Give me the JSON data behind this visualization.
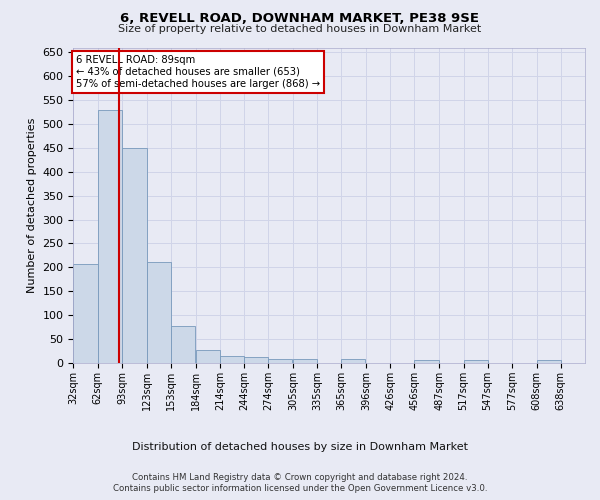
{
  "title": "6, REVELL ROAD, DOWNHAM MARKET, PE38 9SE",
  "subtitle": "Size of property relative to detached houses in Downham Market",
  "xlabel_bottom": "Distribution of detached houses by size in Downham Market",
  "ylabel": "Number of detached properties",
  "footer_line1": "Contains HM Land Registry data © Crown copyright and database right 2024.",
  "footer_line2": "Contains public sector information licensed under the Open Government Licence v3.0.",
  "bar_edges": [
    32,
    62,
    93,
    123,
    153,
    184,
    214,
    244,
    274,
    305,
    335,
    365,
    396,
    426,
    456,
    487,
    517,
    547,
    577,
    608,
    638
  ],
  "bar_values": [
    207,
    530,
    450,
    211,
    78,
    26,
    15,
    12,
    8,
    8,
    0,
    9,
    0,
    0,
    6,
    0,
    6,
    0,
    0,
    6
  ],
  "bar_color": "#ccd8e8",
  "bar_edge_color": "#7799bb",
  "grid_color": "#d0d4e8",
  "property_sqm": 89,
  "red_line_color": "#cc0000",
  "annotation_line1": "6 REVELL ROAD: 89sqm",
  "annotation_line2": "← 43% of detached houses are smaller (653)",
  "annotation_line3": "57% of semi-detached houses are larger (868) →",
  "annotation_box_color": "#cc0000",
  "ylim": [
    0,
    660
  ],
  "yticks": [
    0,
    50,
    100,
    150,
    200,
    250,
    300,
    350,
    400,
    450,
    500,
    550,
    600,
    650
  ],
  "bg_color": "#e8eaf4",
  "plot_bg_color": "#e8eaf4"
}
